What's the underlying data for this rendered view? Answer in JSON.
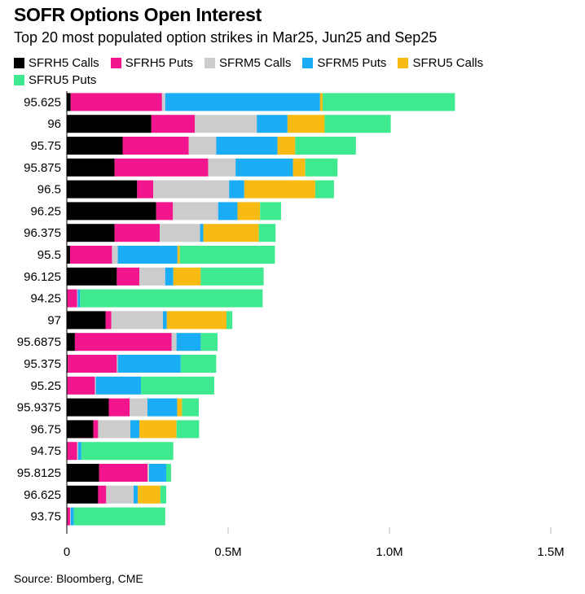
{
  "title": "SOFR Options Open Interest",
  "subtitle": "Top 20 most populated option strikes in Mar25, Jun25 and Sep25",
  "source": "Source: Bloomberg, CME",
  "chart_data": {
    "type": "bar",
    "orientation": "horizontal",
    "stacked": true,
    "categories": [
      "95.625",
      "96",
      "95.75",
      "95.875",
      "96.5",
      "96.25",
      "96.375",
      "95.5",
      "96.125",
      "94.25",
      "97",
      "95.6875",
      "95.375",
      "95.25",
      "95.9375",
      "96.75",
      "94.75",
      "95.8125",
      "96.625",
      "93.75"
    ],
    "series": [
      {
        "name": "SFRH5 Calls",
        "color": "#000000",
        "values": [
          12000,
          262000,
          173000,
          148000,
          218000,
          277000,
          148000,
          10000,
          155000,
          2000,
          120000,
          25000,
          3000,
          2000,
          130000,
          82000,
          2000,
          100000,
          97000,
          2000
        ]
      },
      {
        "name": "SFRH5 Puts",
        "color": "#f2158e",
        "values": [
          283000,
          135000,
          205000,
          290000,
          50000,
          52000,
          140000,
          130000,
          70000,
          30000,
          18000,
          300000,
          152000,
          85000,
          65000,
          15000,
          30000,
          150000,
          25000,
          8000
        ]
      },
      {
        "name": "SFRM5 Calls",
        "color": "#cccccc",
        "values": [
          10000,
          192000,
          85000,
          85000,
          235000,
          140000,
          125000,
          18000,
          80000,
          2000,
          160000,
          15000,
          3000,
          3000,
          55000,
          100000,
          3000,
          5000,
          85000,
          2000
        ]
      },
      {
        "name": "SFRM5 Puts",
        "color": "#1aacf5",
        "values": [
          480000,
          95000,
          190000,
          178000,
          47000,
          60000,
          10000,
          185000,
          25000,
          7000,
          12000,
          75000,
          195000,
          140000,
          92000,
          28000,
          10000,
          53000,
          13000,
          10000
        ]
      },
      {
        "name": "SFRU5 Calls",
        "color": "#f7bb14",
        "values": [
          8000,
          115000,
          55000,
          38000,
          220000,
          70000,
          172000,
          7000,
          85000,
          0,
          185000,
          0,
          0,
          0,
          15000,
          115000,
          0,
          0,
          70000,
          0
        ]
      },
      {
        "name": "SFRU5 Puts",
        "color": "#3fe98f",
        "values": [
          410000,
          205000,
          188000,
          100000,
          58000,
          65000,
          52000,
          295000,
          195000,
          566000,
          18000,
          52000,
          110000,
          227000,
          52000,
          70000,
          285000,
          15000,
          18000,
          283000
        ]
      }
    ],
    "xlim": [
      0,
      1500000
    ],
    "xticks": [
      {
        "value": 0,
        "label": "0"
      },
      {
        "value": 500000,
        "label": "0.5M"
      },
      {
        "value": 1000000,
        "label": "1.0M"
      },
      {
        "value": 1500000,
        "label": "1.5M"
      }
    ],
    "legend_position": "top-left",
    "grid": "vertical"
  }
}
